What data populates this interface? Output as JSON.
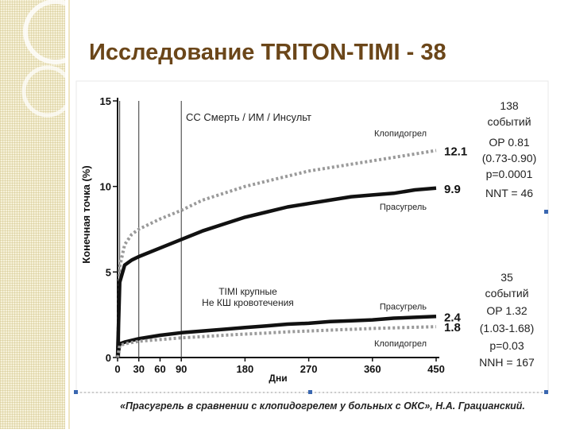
{
  "slide": {
    "title": "Исследование TRITON-TIMI - 38",
    "caption": "«Прасугрель в сравнении с клопидогрелем у больных  с ОКС», Н.А. Грацианский."
  },
  "chart_data": {
    "type": "line",
    "xlabel": "Дни",
    "ylabel": "Конечная точка (%)",
    "xlim": [
      0,
      450
    ],
    "ylim": [
      0,
      15
    ],
    "x_ticks": [
      "0",
      "30",
      "60",
      "90",
      "180",
      "270",
      "360",
      "450"
    ],
    "y_ticks": [
      "0",
      "5",
      "10",
      "15"
    ],
    "vertical_lines_x": [
      3,
      30,
      90
    ],
    "annotations": {
      "top_group": "СС Смерть / ИМ / Инсульт",
      "bottom_group_line1": "TIMI крупные",
      "bottom_group_line2": "Не КШ кровотечения"
    },
    "series": [
      {
        "name": "Клопидогрел",
        "style": "dotted",
        "color": "#9a9a9a",
        "end_label": "12.1",
        "x": [
          0,
          3,
          10,
          20,
          30,
          60,
          90,
          120,
          150,
          180,
          210,
          240,
          270,
          300,
          330,
          360,
          390,
          420,
          450
        ],
        "y": [
          0,
          5.3,
          6.6,
          7.2,
          7.5,
          8.1,
          8.6,
          9.2,
          9.6,
          10.0,
          10.3,
          10.6,
          10.9,
          11.1,
          11.3,
          11.5,
          11.7,
          11.9,
          12.1
        ]
      },
      {
        "name": "Прасугрель",
        "style": "solid",
        "color": "#111111",
        "end_label": "9.9",
        "x": [
          0,
          3,
          10,
          20,
          30,
          60,
          90,
          120,
          150,
          180,
          210,
          240,
          270,
          300,
          330,
          360,
          390,
          420,
          450
        ],
        "y": [
          0,
          4.4,
          5.4,
          5.7,
          5.9,
          6.4,
          6.9,
          7.4,
          7.8,
          8.2,
          8.5,
          8.8,
          9.0,
          9.2,
          9.4,
          9.5,
          9.6,
          9.8,
          9.9
        ]
      },
      {
        "name": "Прасугрель",
        "style": "solid",
        "color": "#111111",
        "end_label": "2.4",
        "x": [
          0,
          3,
          10,
          30,
          60,
          90,
          120,
          150,
          180,
          210,
          240,
          270,
          300,
          330,
          360,
          390,
          420,
          450
        ],
        "y": [
          0,
          0.8,
          0.9,
          1.1,
          1.3,
          1.45,
          1.55,
          1.65,
          1.75,
          1.85,
          1.95,
          2.0,
          2.1,
          2.15,
          2.2,
          2.3,
          2.35,
          2.4
        ]
      },
      {
        "name": "Клопидогрел",
        "style": "dotted",
        "color": "#9a9a9a",
        "end_label": "1.8",
        "x": [
          0,
          3,
          10,
          30,
          60,
          90,
          120,
          150,
          180,
          210,
          240,
          270,
          300,
          330,
          360,
          390,
          420,
          450
        ],
        "y": [
          0,
          0.7,
          0.8,
          0.95,
          1.05,
          1.15,
          1.22,
          1.3,
          1.37,
          1.43,
          1.5,
          1.55,
          1.6,
          1.65,
          1.7,
          1.73,
          1.77,
          1.8
        ]
      }
    ],
    "stats_top": [
      "138",
      "событий",
      "ОР 0.81",
      "(0.73-0.90)",
      "p=0.0001",
      "NNT = 46"
    ],
    "stats_bottom": [
      "35",
      "событий",
      "ОР 1.32",
      "(1.03-1.68)",
      "p=0.03",
      "NNH = 167"
    ]
  }
}
